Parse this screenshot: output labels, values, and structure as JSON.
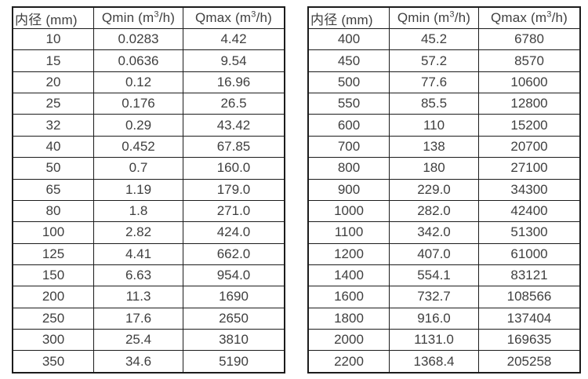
{
  "colors": {
    "background": "#ffffff",
    "border": "#1c1c1c",
    "text": "#3f3f3f"
  },
  "tables": [
    {
      "name": "flow-table-small-diameters",
      "headers": [
        "内径 (mm)",
        "Qmin (m³/h)",
        "Qmax (m³/h)"
      ],
      "rows": [
        [
          "10",
          "0.0283",
          "4.42"
        ],
        [
          "15",
          "0.0636",
          "9.54"
        ],
        [
          "20",
          "0.12",
          "16.96"
        ],
        [
          "25",
          "0.176",
          "26.5"
        ],
        [
          "32",
          "0.29",
          "43.42"
        ],
        [
          "40",
          "0.452",
          "67.85"
        ],
        [
          "50",
          "0.7",
          "160.0"
        ],
        [
          "65",
          "1.19",
          "179.0"
        ],
        [
          "80",
          "1.8",
          "271.0"
        ],
        [
          "100",
          "2.82",
          "424.0"
        ],
        [
          "125",
          "4.41",
          "662.0"
        ],
        [
          "150",
          "6.63",
          "954.0"
        ],
        [
          "200",
          "11.3",
          "1690"
        ],
        [
          "250",
          "17.6",
          "2650"
        ],
        [
          "300",
          "25.4",
          "3810"
        ],
        [
          "350",
          "34.6",
          "5190"
        ]
      ]
    },
    {
      "name": "flow-table-large-diameters",
      "headers": [
        "内径 (mm)",
        "Qmin (m³/h)",
        "Qmax (m³/h)"
      ],
      "rows": [
        [
          "400",
          "45.2",
          "6780"
        ],
        [
          "450",
          "57.2",
          "8570"
        ],
        [
          "500",
          "77.6",
          "10600"
        ],
        [
          "550",
          "85.5",
          "12800"
        ],
        [
          "600",
          "110",
          "15200"
        ],
        [
          "700",
          "138",
          "20700"
        ],
        [
          "800",
          "180",
          "27100"
        ],
        [
          "900",
          "229.0",
          "34300"
        ],
        [
          "1000",
          "282.0",
          "42400"
        ],
        [
          "1100",
          "342.0",
          "51300"
        ],
        [
          "1200",
          "407.0",
          "61000"
        ],
        [
          "1400",
          "554.1",
          "83121"
        ],
        [
          "1600",
          "732.7",
          "108566"
        ],
        [
          "1800",
          "916.0",
          "137404"
        ],
        [
          "2000",
          "1131.0",
          "169635"
        ],
        [
          "2200",
          "1368.4",
          "205258"
        ]
      ]
    }
  ]
}
